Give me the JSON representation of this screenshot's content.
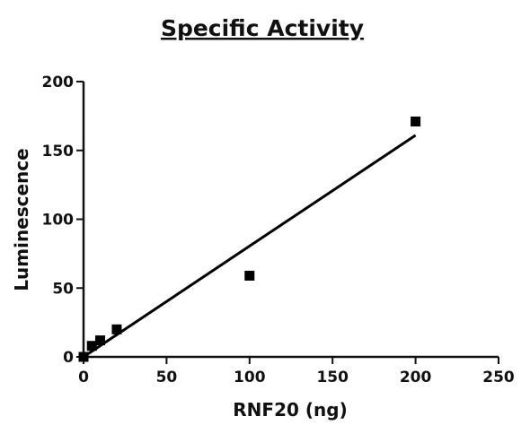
{
  "chart_data": {
    "type": "scatter",
    "title": "Specific Activity",
    "xlabel": "RNF20 (ng)",
    "ylabel": "Luminescence",
    "xlim": [
      0,
      250
    ],
    "ylim": [
      0,
      200
    ],
    "x_ticks": [
      0,
      50,
      100,
      150,
      200,
      250
    ],
    "y_ticks": [
      0,
      50,
      100,
      150,
      200
    ],
    "x_tick_labels": [
      "0",
      "50",
      "100",
      "150",
      "200",
      "250"
    ],
    "y_tick_labels": [
      "0",
      "50",
      "100",
      "150",
      "200"
    ],
    "grid": false,
    "legend": "none",
    "series": [
      {
        "points": [
          {
            "x": 0,
            "y": 0
          },
          {
            "x": 5,
            "y": 8
          },
          {
            "x": 10,
            "y": 12
          },
          {
            "x": 20,
            "y": 20
          },
          {
            "x": 100,
            "y": 59
          },
          {
            "x": 200,
            "y": 171
          }
        ],
        "marker": "square",
        "color": "#000000"
      }
    ],
    "fit_line": {
      "type": "linear",
      "from": {
        "x": 0,
        "y": 0
      },
      "to": {
        "x": 200,
        "y": 161
      },
      "color": "#000000"
    }
  }
}
